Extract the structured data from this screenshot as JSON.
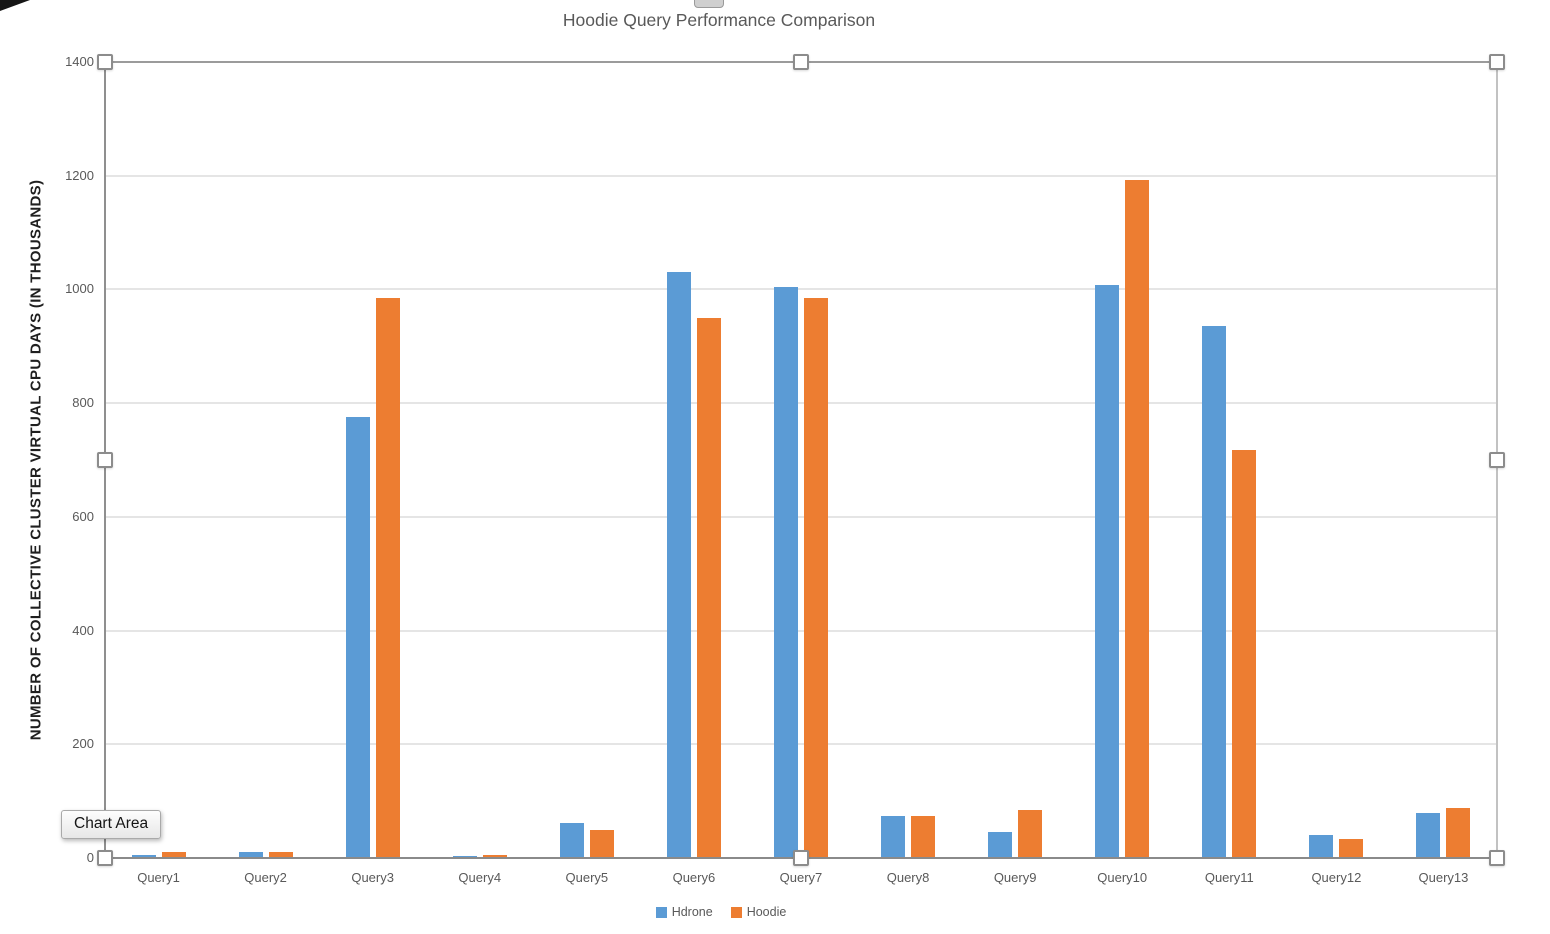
{
  "chart_title": "Hoodie Query Performance Comparison",
  "tooltip_label": "Chart Area",
  "axis": {
    "y_title": "NUMBER OF COLLECTIVE CLUSTER VIRTUAL CPU DAYS (IN THOUSANDS)"
  },
  "legend": {
    "items": [
      {
        "label": "Hdrone",
        "color": "#5B9BD5"
      },
      {
        "label": "Hoodie",
        "color": "#ED7D31"
      }
    ]
  },
  "colors": {
    "series_hdrone": "#5B9BD5",
    "series_hoodie": "#ED7D31",
    "gridline": "#E5E5E5",
    "axis_line": "#8A8A8A",
    "tick_text": "#595959",
    "title_text": "#595959"
  },
  "chart_data": {
    "type": "bar",
    "title": "Hoodie Query Performance Comparison",
    "xlabel": "",
    "ylabel": "NUMBER OF COLLECTIVE CLUSTER VIRTUAL CPU DAYS (IN THOUSANDS)",
    "ylim": [
      0,
      1400
    ],
    "yticks": [
      0,
      200,
      400,
      600,
      800,
      1000,
      1200,
      1400
    ],
    "grid": true,
    "legend_position": "bottom",
    "categories": [
      "Query1",
      "Query2",
      "Query3",
      "Query4",
      "Query5",
      "Query6",
      "Query7",
      "Query8",
      "Query9",
      "Query10",
      "Query11",
      "Query12",
      "Query13"
    ],
    "series": [
      {
        "name": "Hdrone",
        "color": "#5B9BD5",
        "values": [
          5,
          10,
          775,
          4,
          62,
          1030,
          1005,
          73,
          46,
          1008,
          935,
          40,
          80
        ]
      },
      {
        "name": "Hoodie",
        "color": "#ED7D31",
        "values": [
          10,
          10,
          985,
          5,
          50,
          950,
          985,
          73,
          85,
          1193,
          718,
          33,
          88
        ]
      }
    ]
  }
}
